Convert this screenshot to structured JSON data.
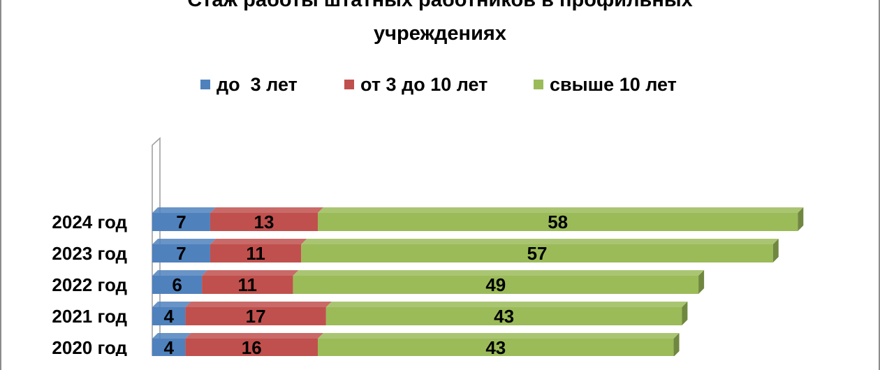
{
  "chart_data": {
    "type": "bar",
    "orientation": "horizontal",
    "stacked": true,
    "title": "Стаж работы штатных работников в профильных учреждениях",
    "title_lines": [
      "Стаж работы штатных работников в профильных",
      "учреждениях"
    ],
    "categories": [
      "2024 год",
      "2023 год",
      "2022 год",
      "2021 год",
      "2020 год"
    ],
    "series": [
      {
        "name": "до  3 лет",
        "color": "#4f81bd",
        "values": [
          7,
          7,
          6,
          4,
          4
        ]
      },
      {
        "name": "от 3 до 10 лет",
        "color": "#c0504d",
        "values": [
          13,
          11,
          11,
          17,
          16
        ]
      },
      {
        "name": "свыше 10 лет",
        "color": "#9bbb59",
        "values": [
          58,
          57,
          49,
          43,
          43
        ]
      }
    ],
    "legend_position": "top",
    "gridlines": false,
    "data_labels": true
  }
}
